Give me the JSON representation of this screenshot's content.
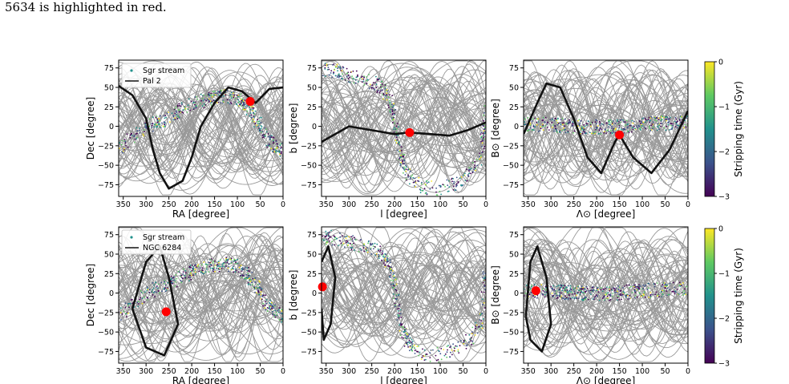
{
  "caption": "5634 is highlighted in red.",
  "chart_data": [
    {
      "type": "scatter",
      "row": 0,
      "xlabel": "RA [degree]",
      "ylabel": "Dec [degree]",
      "xlim": [
        360,
        0
      ],
      "ylim": [
        -90,
        85
      ],
      "xticks": [
        350,
        300,
        250,
        200,
        150,
        100,
        50,
        0
      ],
      "yticks": [
        75,
        50,
        25,
        0,
        -25,
        -50,
        -75
      ],
      "legend": {
        "placement": "top-left",
        "entries": [
          "Sgr stream",
          "Pal 2"
        ]
      },
      "series": [
        {
          "name": "Sgr stream",
          "kind": "scatter-band",
          "color_by": "Stripping time (Gyr)",
          "path": [
            [
              360,
              -30
            ],
            [
              320,
              -10
            ],
            [
              280,
              5
            ],
            [
              250,
              10
            ],
            [
              220,
              22
            ],
            [
              190,
              30
            ],
            [
              160,
              35
            ],
            [
              130,
              38
            ],
            [
              100,
              35
            ],
            [
              80,
              25
            ],
            [
              60,
              10
            ],
            [
              40,
              -10
            ],
            [
              20,
              -25
            ],
            [
              0,
              -30
            ]
          ]
        },
        {
          "name": "Pal 2",
          "kind": "line",
          "color": "#111111",
          "path": [
            [
              360,
              52
            ],
            [
              330,
              40
            ],
            [
              300,
              10
            ],
            [
              285,
              -30
            ],
            [
              270,
              -60
            ],
            [
              250,
              -80
            ],
            [
              220,
              -70
            ],
            [
              200,
              -40
            ],
            [
              180,
              0
            ],
            [
              150,
              30
            ],
            [
              120,
              50
            ],
            [
              90,
              45
            ],
            [
              60,
              30
            ],
            [
              30,
              48
            ],
            [
              0,
              50
            ]
          ]
        }
      ],
      "highlight": {
        "x": 72,
        "y": 32,
        "color": "#ff0000"
      }
    },
    {
      "type": "scatter",
      "row": 0,
      "xlabel": "l [degree]",
      "ylabel": "b [degree]",
      "xlim": [
        360,
        0
      ],
      "ylim": [
        -90,
        85
      ],
      "xticks": [
        350,
        300,
        250,
        200,
        150,
        100,
        50,
        0
      ],
      "yticks": [
        75,
        50,
        25,
        0,
        -25,
        -50,
        -75
      ],
      "series": [
        {
          "name": "Sgr stream",
          "kind": "scatter-band",
          "color_by": "Stripping time (Gyr)",
          "path": [
            [
              360,
              72
            ],
            [
              320,
              70
            ],
            [
              280,
              62
            ],
            [
              240,
              55
            ],
            [
              215,
              40
            ],
            [
              200,
              10
            ],
            [
              190,
              -30
            ],
            [
              175,
              -60
            ],
            [
              140,
              -78
            ],
            [
              100,
              -80
            ],
            [
              50,
              -70
            ],
            [
              10,
              -40
            ],
            [
              0,
              30
            ]
          ]
        },
        {
          "name": "Pal 2",
          "kind": "line",
          "color": "#111111",
          "path": [
            [
              360,
              -20
            ],
            [
              330,
              -10
            ],
            [
              300,
              0
            ],
            [
              250,
              -5
            ],
            [
              200,
              -10
            ],
            [
              170,
              -8
            ],
            [
              120,
              -10
            ],
            [
              80,
              -12
            ],
            [
              40,
              -5
            ],
            [
              0,
              5
            ]
          ]
        }
      ],
      "highlight": {
        "x": 167,
        "y": -8,
        "color": "#ff0000"
      }
    },
    {
      "type": "scatter",
      "row": 0,
      "xlabel": "Λ⊙ [degree]",
      "ylabel": "B⊙ [degree]",
      "xlim": [
        360,
        0
      ],
      "ylim": [
        -90,
        85
      ],
      "xticks": [
        350,
        300,
        250,
        200,
        150,
        100,
        50,
        0
      ],
      "yticks": [
        75,
        50,
        25,
        0,
        -25,
        -50,
        -75
      ],
      "series": [
        {
          "name": "Sgr stream",
          "kind": "scatter-band",
          "color_by": "Stripping time (Gyr)",
          "path": [
            [
              360,
              3
            ],
            [
              300,
              2
            ],
            [
              250,
              0
            ],
            [
              200,
              -1
            ],
            [
              150,
              0
            ],
            [
              100,
              3
            ],
            [
              50,
              4
            ],
            [
              0,
              5
            ]
          ]
        },
        {
          "name": "Pal 2",
          "kind": "line",
          "color": "#111111",
          "path": [
            [
              360,
              -10
            ],
            [
              330,
              30
            ],
            [
              310,
              55
            ],
            [
              280,
              50
            ],
            [
              250,
              10
            ],
            [
              220,
              -40
            ],
            [
              190,
              -60
            ],
            [
              160,
              -20
            ],
            [
              150,
              -11
            ],
            [
              120,
              -40
            ],
            [
              80,
              -60
            ],
            [
              40,
              -30
            ],
            [
              0,
              20
            ]
          ]
        }
      ],
      "highlight": {
        "x": 150,
        "y": -11,
        "color": "#ff0000"
      }
    },
    {
      "type": "scatter",
      "row": 1,
      "xlabel": "RA [degree]",
      "ylabel": "Dec [degree]",
      "xlim": [
        360,
        0
      ],
      "ylim": [
        -90,
        85
      ],
      "xticks": [
        350,
        300,
        250,
        200,
        150,
        100,
        50,
        0
      ],
      "yticks": [
        75,
        50,
        25,
        0,
        -25,
        -50,
        -75
      ],
      "legend": {
        "placement": "top-left",
        "entries": [
          "Sgr stream",
          "NGC 6284"
        ]
      },
      "series": [
        {
          "name": "Sgr stream",
          "kind": "scatter-band",
          "color_by": "Stripping time (Gyr)",
          "path": [
            [
              360,
              -30
            ],
            [
              320,
              -10
            ],
            [
              280,
              5
            ],
            [
              250,
              10
            ],
            [
              220,
              22
            ],
            [
              190,
              30
            ],
            [
              160,
              35
            ],
            [
              130,
              38
            ],
            [
              100,
              35
            ],
            [
              80,
              25
            ],
            [
              60,
              10
            ],
            [
              40,
              -10
            ],
            [
              20,
              -25
            ],
            [
              0,
              -30
            ]
          ]
        },
        {
          "name": "NGC 6284",
          "kind": "line",
          "color": "#111111",
          "path": [
            [
              330,
              -20
            ],
            [
              300,
              40
            ],
            [
              270,
              60
            ],
            [
              250,
              20
            ],
            [
              230,
              -40
            ],
            [
              260,
              -80
            ],
            [
              300,
              -70
            ],
            [
              330,
              -20
            ]
          ]
        }
      ],
      "highlight": {
        "x": 256,
        "y": -24,
        "color": "#ff0000"
      }
    },
    {
      "type": "scatter",
      "row": 1,
      "xlabel": "l [degree]",
      "ylabel": "b [degree]",
      "xlim": [
        360,
        0
      ],
      "ylim": [
        -90,
        85
      ],
      "xticks": [
        350,
        300,
        250,
        200,
        150,
        100,
        50,
        0
      ],
      "yticks": [
        75,
        50,
        25,
        0,
        -25,
        -50,
        -75
      ],
      "series": [
        {
          "name": "Sgr stream",
          "kind": "scatter-band",
          "color_by": "Stripping time (Gyr)",
          "path": [
            [
              360,
              72
            ],
            [
              320,
              70
            ],
            [
              280,
              62
            ],
            [
              240,
              55
            ],
            [
              215,
              40
            ],
            [
              200,
              10
            ],
            [
              190,
              -30
            ],
            [
              175,
              -60
            ],
            [
              140,
              -78
            ],
            [
              100,
              -80
            ],
            [
              50,
              -70
            ],
            [
              10,
              -40
            ],
            [
              0,
              30
            ]
          ]
        },
        {
          "name": "NGC 6284",
          "kind": "line",
          "color": "#111111",
          "path": [
            [
              360,
              40
            ],
            [
              345,
              60
            ],
            [
              330,
              20
            ],
            [
              340,
              -40
            ],
            [
              355,
              -60
            ],
            [
              360,
              -20
            ]
          ]
        }
      ],
      "highlight": {
        "x": 358,
        "y": 8,
        "color": "#ff0000"
      }
    },
    {
      "type": "scatter",
      "row": 1,
      "xlabel": "Λ⊙ [degree]",
      "ylabel": "B⊙ [degree]",
      "xlim": [
        360,
        0
      ],
      "ylim": [
        -90,
        85
      ],
      "xticks": [
        350,
        300,
        250,
        200,
        150,
        100,
        50,
        0
      ],
      "yticks": [
        75,
        50,
        25,
        0,
        -25,
        -50,
        -75
      ],
      "series": [
        {
          "name": "Sgr stream",
          "kind": "scatter-band",
          "color_by": "Stripping time (Gyr)",
          "path": [
            [
              360,
              3
            ],
            [
              300,
              2
            ],
            [
              250,
              0
            ],
            [
              200,
              -1
            ],
            [
              150,
              0
            ],
            [
              100,
              3
            ],
            [
              50,
              4
            ],
            [
              0,
              5
            ]
          ]
        },
        {
          "name": "NGC 6284",
          "kind": "line",
          "color": "#111111",
          "path": [
            [
              355,
              -30
            ],
            [
              345,
              40
            ],
            [
              330,
              60
            ],
            [
              310,
              20
            ],
            [
              300,
              -40
            ],
            [
              320,
              -75
            ],
            [
              345,
              -60
            ],
            [
              355,
              -30
            ]
          ]
        }
      ],
      "highlight": {
        "x": 333,
        "y": 3,
        "color": "#ff0000"
      }
    }
  ],
  "colorbars": [
    {
      "row": 0,
      "label": "Stripping time (Gyr)",
      "ticks": [
        "0",
        "−1",
        "−2",
        "−3"
      ],
      "range": [
        -3,
        0
      ]
    },
    {
      "row": 1,
      "label": "Stripping time (Gyr)",
      "ticks": [
        "0",
        "−1",
        "−2",
        "−3"
      ],
      "range": [
        -3,
        0
      ]
    }
  ],
  "colors": {
    "orbit_gray": "#777777",
    "highlight": "#ff0000",
    "stream_yellow": "#e8e419",
    "stream_green": "#35b779",
    "stream_teal": "#21918c",
    "stream_blue": "#3b528b",
    "stream_purple": "#440154"
  }
}
